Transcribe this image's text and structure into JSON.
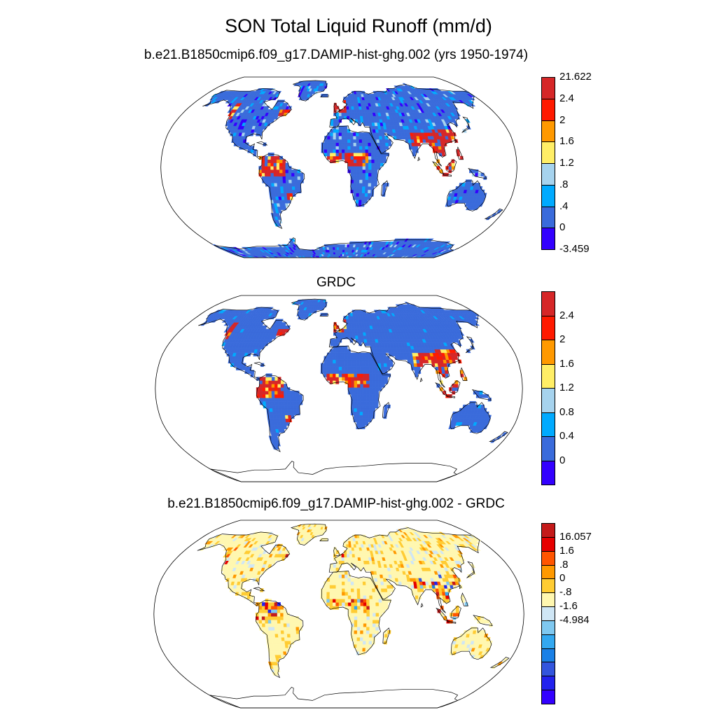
{
  "figure": {
    "title": "SON Total Liquid Runoff (mm/d)"
  },
  "panels": [
    {
      "title": "b.e21.B1850cmip6.f09_g17.DAMIP-hist-ghg.002 (yrs 1950-1974)",
      "colorbar": {
        "colors": [
          "#d62728",
          "#ff1a00",
          "#ff9900",
          "#ffee66",
          "#a6d3ee",
          "#00aaff",
          "#3a6bdb",
          "#3300ff"
        ],
        "labels": [
          "21.622",
          "2.4",
          "2",
          "1.6",
          "1.2",
          ".8",
          ".4",
          "0",
          "-3.459"
        ]
      },
      "land_base_color": "#3a6bdb"
    },
    {
      "title": "GRDC",
      "colorbar": {
        "colors": [
          "#d62728",
          "#ff1a00",
          "#ff9900",
          "#ffee66",
          "#a6d3ee",
          "#00aaff",
          "#3a6bdb",
          "#3300ff"
        ],
        "labels": [
          "2.4",
          "2",
          "1.6",
          "1.2",
          "0.8",
          "0.4",
          "0"
        ]
      },
      "land_base_color": "#3a6bdb"
    },
    {
      "title": "b.e21.B1850cmip6.f09_g17.DAMIP-hist-ghg.002 - GRDC",
      "colorbar": {
        "colors": [
          "#c41a1a",
          "#e60000",
          "#ff5500",
          "#ff9900",
          "#ffcc33",
          "#fff7b0",
          "#cfe6f5",
          "#7fc8f0",
          "#33a8f0",
          "#1a80e6",
          "#3355dd",
          "#2222ee",
          "#3300ff"
        ],
        "labels": [
          "16.057",
          "1.6",
          ".8",
          "0",
          "-.8",
          "-1.6",
          "-4.984"
        ]
      },
      "land_base_color": "#fff7b0"
    }
  ]
}
